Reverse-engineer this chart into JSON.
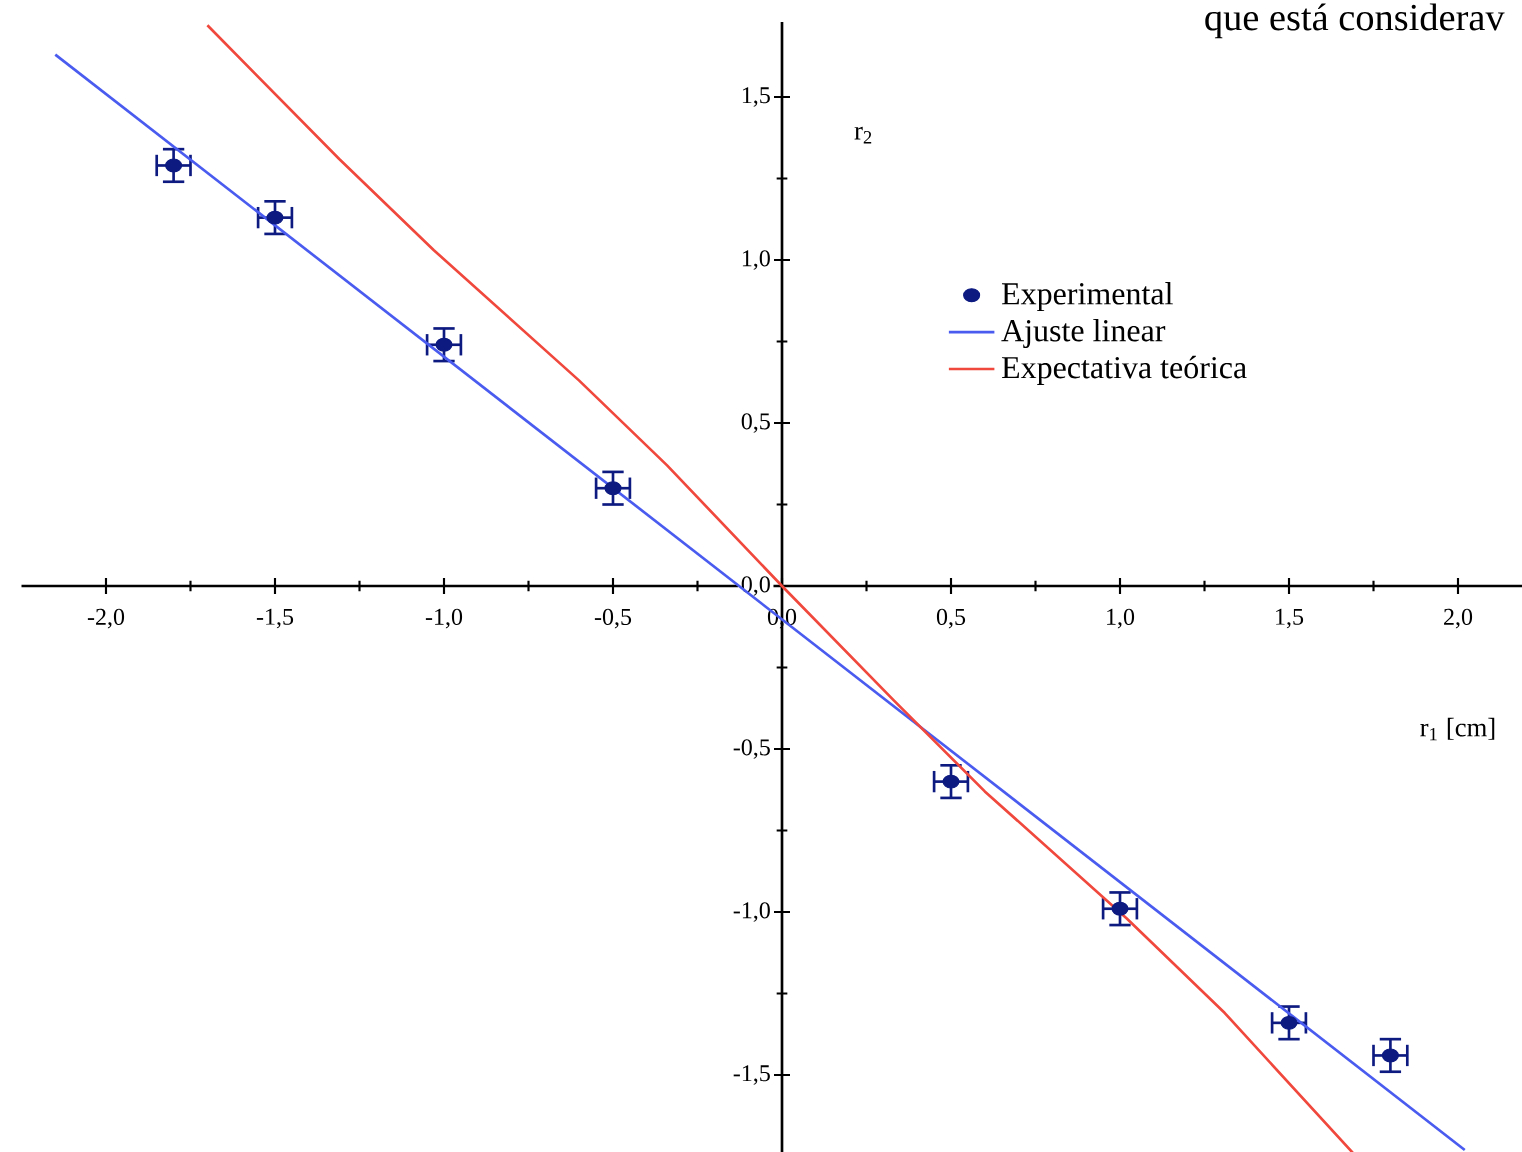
{
  "chart_data": {
    "type": "scatter",
    "xlabel": "r$_{1}$ [cm]",
    "ylabel": "r$_{2}$",
    "annotations": [
      "que está considerav"
    ],
    "xlim": [
      -2.25,
      2.2
    ],
    "ylim": [
      -1.74,
      1.73
    ],
    "xticks": [
      {
        "value": -2.0,
        "label": "-2,0"
      },
      {
        "value": -1.5,
        "label": "-1,5"
      },
      {
        "value": -1.0,
        "label": "-1,0"
      },
      {
        "value": -0.5,
        "label": "-0,5"
      },
      {
        "value": 0.0,
        "label": "0,0"
      },
      {
        "value": 0.5,
        "label": "0,5"
      },
      {
        "value": 1.0,
        "label": "1,0"
      },
      {
        "value": 1.5,
        "label": "1,5"
      },
      {
        "value": 2.0,
        "label": "2,0"
      }
    ],
    "yticks": [
      {
        "value": -1.5,
        "label": "-1,5"
      },
      {
        "value": -1.0,
        "label": "-1,0"
      },
      {
        "value": -0.5,
        "label": "-0,5"
      },
      {
        "value": 0.0,
        "label": "0,0"
      },
      {
        "value": 0.5,
        "label": "0,5"
      },
      {
        "value": 1.0,
        "label": "1,0"
      },
      {
        "value": 1.5,
        "label": "1,5"
      }
    ],
    "legend": "top right",
    "grid": false,
    "series": [
      {
        "name": "Experimental",
        "marker": "circle",
        "color": "#0d1a80",
        "x": [
          -1.8,
          -1.5,
          -1.0,
          -0.5,
          0.5,
          1.0,
          1.5,
          1.8
        ],
        "values": [
          1.29,
          1.13,
          0.74,
          0.3,
          -0.6,
          -0.99,
          -1.34,
          -1.44
        ],
        "errors": [
          0.05,
          0.05,
          0.05,
          0.05,
          0.05,
          0.05,
          0.05,
          0.05
        ],
        "xerrors": [
          0.05,
          0.05,
          0.05,
          0.05,
          0.05,
          0.05,
          0.05,
          0.05
        ]
      },
      {
        "name": "Ajuste linear",
        "type": "line",
        "marker": "none",
        "color": "#4a5cf0",
        "x": [
          -2.15,
          2.02
        ],
        "values": [
          1.63,
          -1.73
        ]
      },
      {
        "name": "Expectativa teórica",
        "type": "line",
        "marker": "none",
        "color": "#f0483c",
        "x": [
          -1.7,
          -1.31,
          -1.03,
          -0.6,
          -0.34,
          0.0,
          0.33,
          0.6,
          1.02,
          1.31,
          1.69
        ],
        "values": [
          1.72,
          1.31,
          1.03,
          0.63,
          0.37,
          0.0,
          -0.35,
          -0.63,
          -1.02,
          -1.31,
          -1.74
        ]
      }
    ]
  }
}
